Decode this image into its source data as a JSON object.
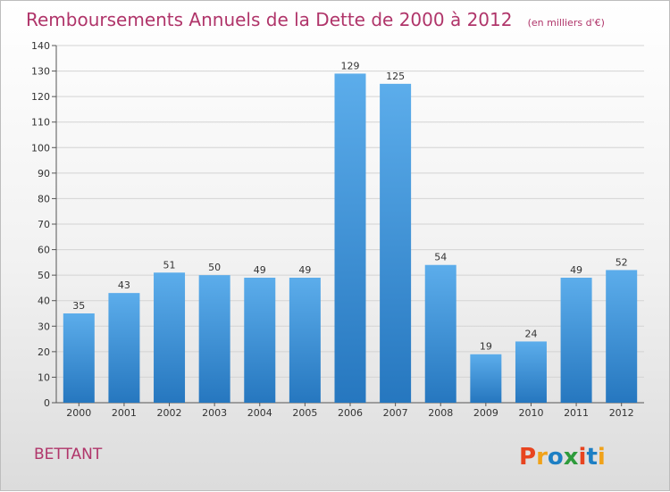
{
  "title": "Remboursements Annuels de la Dette de 2000 à 2012",
  "unit": "(en milliers d'€)",
  "commune": "BETTANT",
  "brand": {
    "letters": [
      "P",
      "r",
      "o",
      "x",
      "i",
      "t",
      "i"
    ],
    "colors": [
      "#e8441f",
      "#f0a21a",
      "#1d7fc4",
      "#2e9b3c",
      "#e8441f",
      "#1d7fc4",
      "#f0a21a"
    ]
  },
  "colors": {
    "bar": "#3d93d8",
    "bar_light": "#5cadeb",
    "bar_dark": "#2677bf",
    "title": "#b0356a",
    "grid": "#d3d3d3"
  },
  "chart_data": {
    "type": "bar",
    "title": "Remboursements Annuels de la Dette de 2000 à 2012",
    "xlabel": "",
    "ylabel": "",
    "categories": [
      "2000",
      "2001",
      "2002",
      "2003",
      "2004",
      "2005",
      "2006",
      "2007",
      "2008",
      "2009",
      "2010",
      "2011",
      "2012"
    ],
    "values": [
      35,
      43,
      51,
      50,
      49,
      49,
      129,
      125,
      54,
      19,
      24,
      49,
      52
    ],
    "ylim": [
      0,
      140
    ],
    "yticks": [
      0,
      10,
      20,
      30,
      40,
      50,
      60,
      70,
      80,
      90,
      100,
      110,
      120,
      130,
      140
    ],
    "grid": true,
    "legend": "none"
  }
}
